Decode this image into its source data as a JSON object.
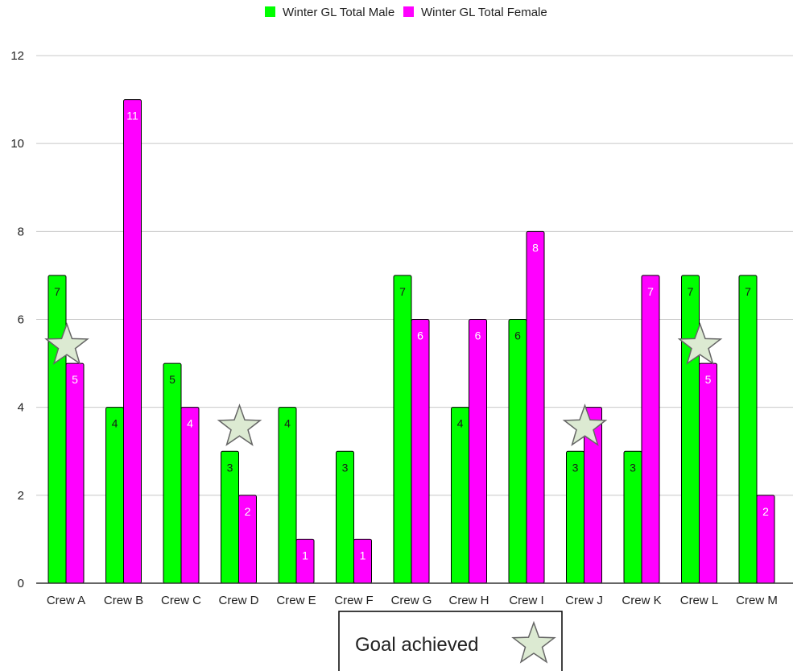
{
  "chart_data": {
    "type": "bar",
    "categories": [
      "Crew A",
      "Crew B",
      "Crew C",
      "Crew D",
      "Crew E",
      "Crew F",
      "Crew G",
      "Crew H",
      "Crew I",
      "Crew J",
      "Crew K",
      "Crew L",
      "Crew M"
    ],
    "series": [
      {
        "name": "Winter GL Total Male",
        "color": "#00ff00",
        "values": [
          7,
          4,
          5,
          3,
          4,
          3,
          7,
          4,
          6,
          3,
          3,
          7,
          7
        ],
        "label_color": "#1a1a1a"
      },
      {
        "name": "Winter GL Total Female",
        "color": "#ff00ff",
        "values": [
          5,
          11,
          4,
          2,
          1,
          1,
          6,
          6,
          8,
          4,
          7,
          5,
          2
        ],
        "label_color": "#ffffff"
      }
    ],
    "ylim": [
      0,
      12
    ],
    "yticks": [
      0,
      2,
      4,
      6,
      8,
      10,
      12
    ],
    "grid": true,
    "legend_position": "top-center",
    "goal_achieved_categories": [
      "Crew A",
      "Crew D",
      "Crew J",
      "Crew L"
    ],
    "goal_star_values": [
      5.4,
      3.55,
      3.55,
      5.4
    ],
    "annotation": {
      "text": "Goal achieved",
      "icon": "star-icon",
      "star_fill": "#dcead2",
      "star_stroke": "#666666"
    }
  }
}
